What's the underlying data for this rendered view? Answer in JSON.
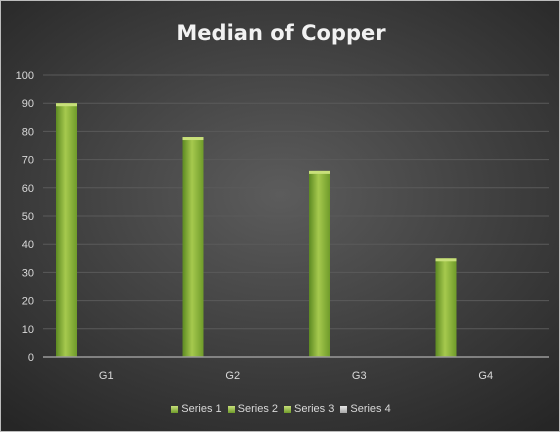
{
  "chart_data": {
    "type": "bar",
    "title": "Median of Copper",
    "categories": [
      "G1",
      "G2",
      "G3",
      "G4"
    ],
    "series": [
      {
        "name": "Series 1",
        "values": [
          90,
          78,
          66,
          35
        ]
      },
      {
        "name": "Series 2",
        "values": [
          null,
          null,
          null,
          null
        ]
      },
      {
        "name": "Series 3",
        "values": [
          null,
          null,
          null,
          null
        ]
      },
      {
        "name": "Series 4",
        "values": [
          null,
          null,
          null,
          null
        ]
      }
    ],
    "ylim": [
      0,
      100
    ],
    "yticks": [
      0,
      10,
      20,
      30,
      40,
      50,
      60,
      70,
      80,
      90,
      100
    ],
    "grid": true,
    "legend_position": "bottom",
    "colors": {
      "bar_light": "#c8e07a",
      "bar_mid": "#9bc043",
      "bar_dark": "#6f9b2a"
    }
  }
}
